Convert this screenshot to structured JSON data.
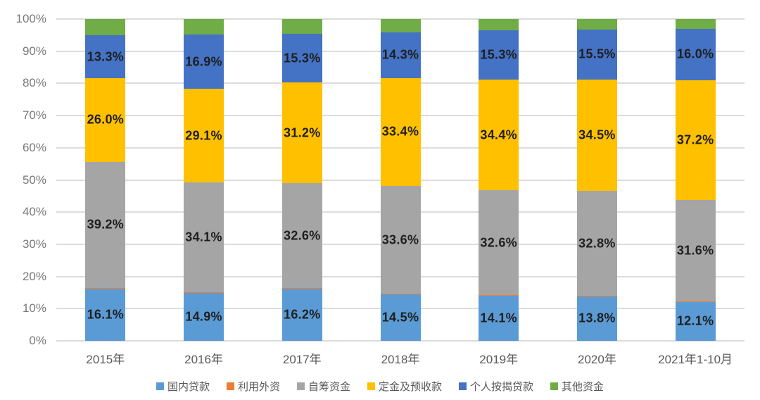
{
  "chart_data": {
    "type": "bar",
    "stacked": true,
    "percent_stacked": true,
    "title": "",
    "xlabel": "",
    "ylabel": "",
    "grid": true,
    "legend_position": "bottom",
    "categories": [
      "2015年",
      "2016年",
      "2017年",
      "2018年",
      "2019年",
      "2020年",
      "2021年1-10月"
    ],
    "series": [
      {
        "name": "国内贷款",
        "color": "#5B9BD5",
        "labeled": true,
        "values": [
          16.1,
          14.9,
          16.2,
          14.5,
          14.1,
          13.8,
          12.1
        ]
      },
      {
        "name": "利用外资",
        "color": "#ED7D31",
        "labeled": false,
        "values": [
          0.3,
          0.2,
          0.2,
          0.1,
          0.1,
          0.1,
          0.1
        ]
      },
      {
        "name": "自筹资金",
        "color": "#A5A5A5",
        "labeled": true,
        "values": [
          39.2,
          34.1,
          32.6,
          33.6,
          32.6,
          32.8,
          31.6
        ]
      },
      {
        "name": "定金及预收款",
        "color": "#FFC000",
        "labeled": true,
        "values": [
          26.0,
          29.1,
          31.2,
          33.4,
          34.4,
          34.5,
          37.2
        ]
      },
      {
        "name": "个人按揭贷款",
        "color": "#4472C4",
        "labeled": true,
        "values": [
          13.3,
          16.9,
          15.3,
          14.3,
          15.3,
          15.5,
          16.0
        ]
      },
      {
        "name": "其他资金",
        "color": "#70AD47",
        "labeled": false,
        "values": [
          5.1,
          4.8,
          4.5,
          4.1,
          3.5,
          3.3,
          3.0
        ]
      }
    ],
    "yaxis": {
      "min": 0,
      "max": 100,
      "tick_step": 10,
      "ticks": [
        "0%",
        "10%",
        "20%",
        "30%",
        "40%",
        "50%",
        "60%",
        "70%",
        "80%",
        "90%",
        "100%"
      ]
    },
    "label_format": "one_decimal_percent"
  },
  "colors": {
    "background": "#FFFFFF",
    "gridline": "#DCDCDC",
    "y_tick_text": "#7A7A7A",
    "x_tick_text": "#595959",
    "data_label_text": "#1F1F1F",
    "legend_text": "#595959"
  }
}
